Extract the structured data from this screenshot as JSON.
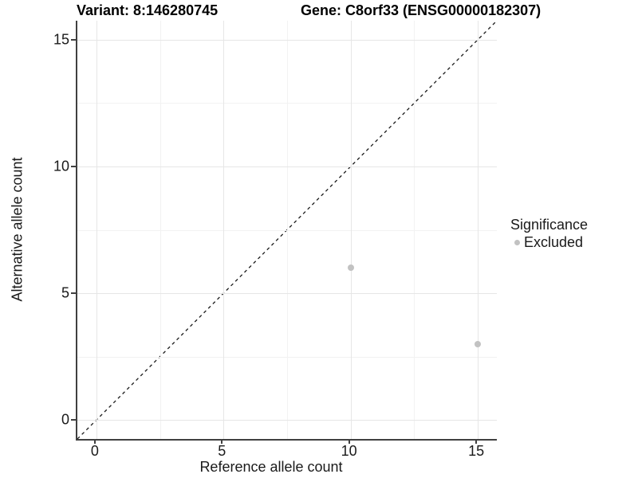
{
  "chart_data": {
    "type": "scatter",
    "title_left": "Variant: 8:146280745",
    "title_right": "Gene: C8orf33 (ENSG00000182307)",
    "xlabel": "Reference allele count",
    "ylabel": "Alternative allele count",
    "xlim": [
      -0.75,
      15.75
    ],
    "ylim": [
      -0.75,
      15.75
    ],
    "x_ticks": [
      0,
      5,
      10,
      15
    ],
    "y_ticks": [
      0,
      5,
      10,
      15
    ],
    "minor_ticks": [
      2.5,
      7.5,
      12.5
    ],
    "grid": true,
    "reference_line": {
      "type": "identity-diagonal",
      "style": "dashed",
      "color": "#1a1a1a"
    },
    "series": [
      {
        "name": "Excluded",
        "color": "#c2c2c2",
        "points": [
          {
            "x": 10,
            "y": 6
          },
          {
            "x": 15,
            "y": 3
          }
        ]
      }
    ],
    "legend": {
      "title": "Significance",
      "position": "right",
      "items": [
        {
          "label": "Excluded",
          "color": "#c2c2c2"
        }
      ]
    }
  },
  "colors": {
    "background": "#ffffff",
    "axis_line": "#404040",
    "grid_major": "#e6e6e6",
    "grid_minor": "#f2f2f2",
    "text": "#1a1a1a"
  }
}
